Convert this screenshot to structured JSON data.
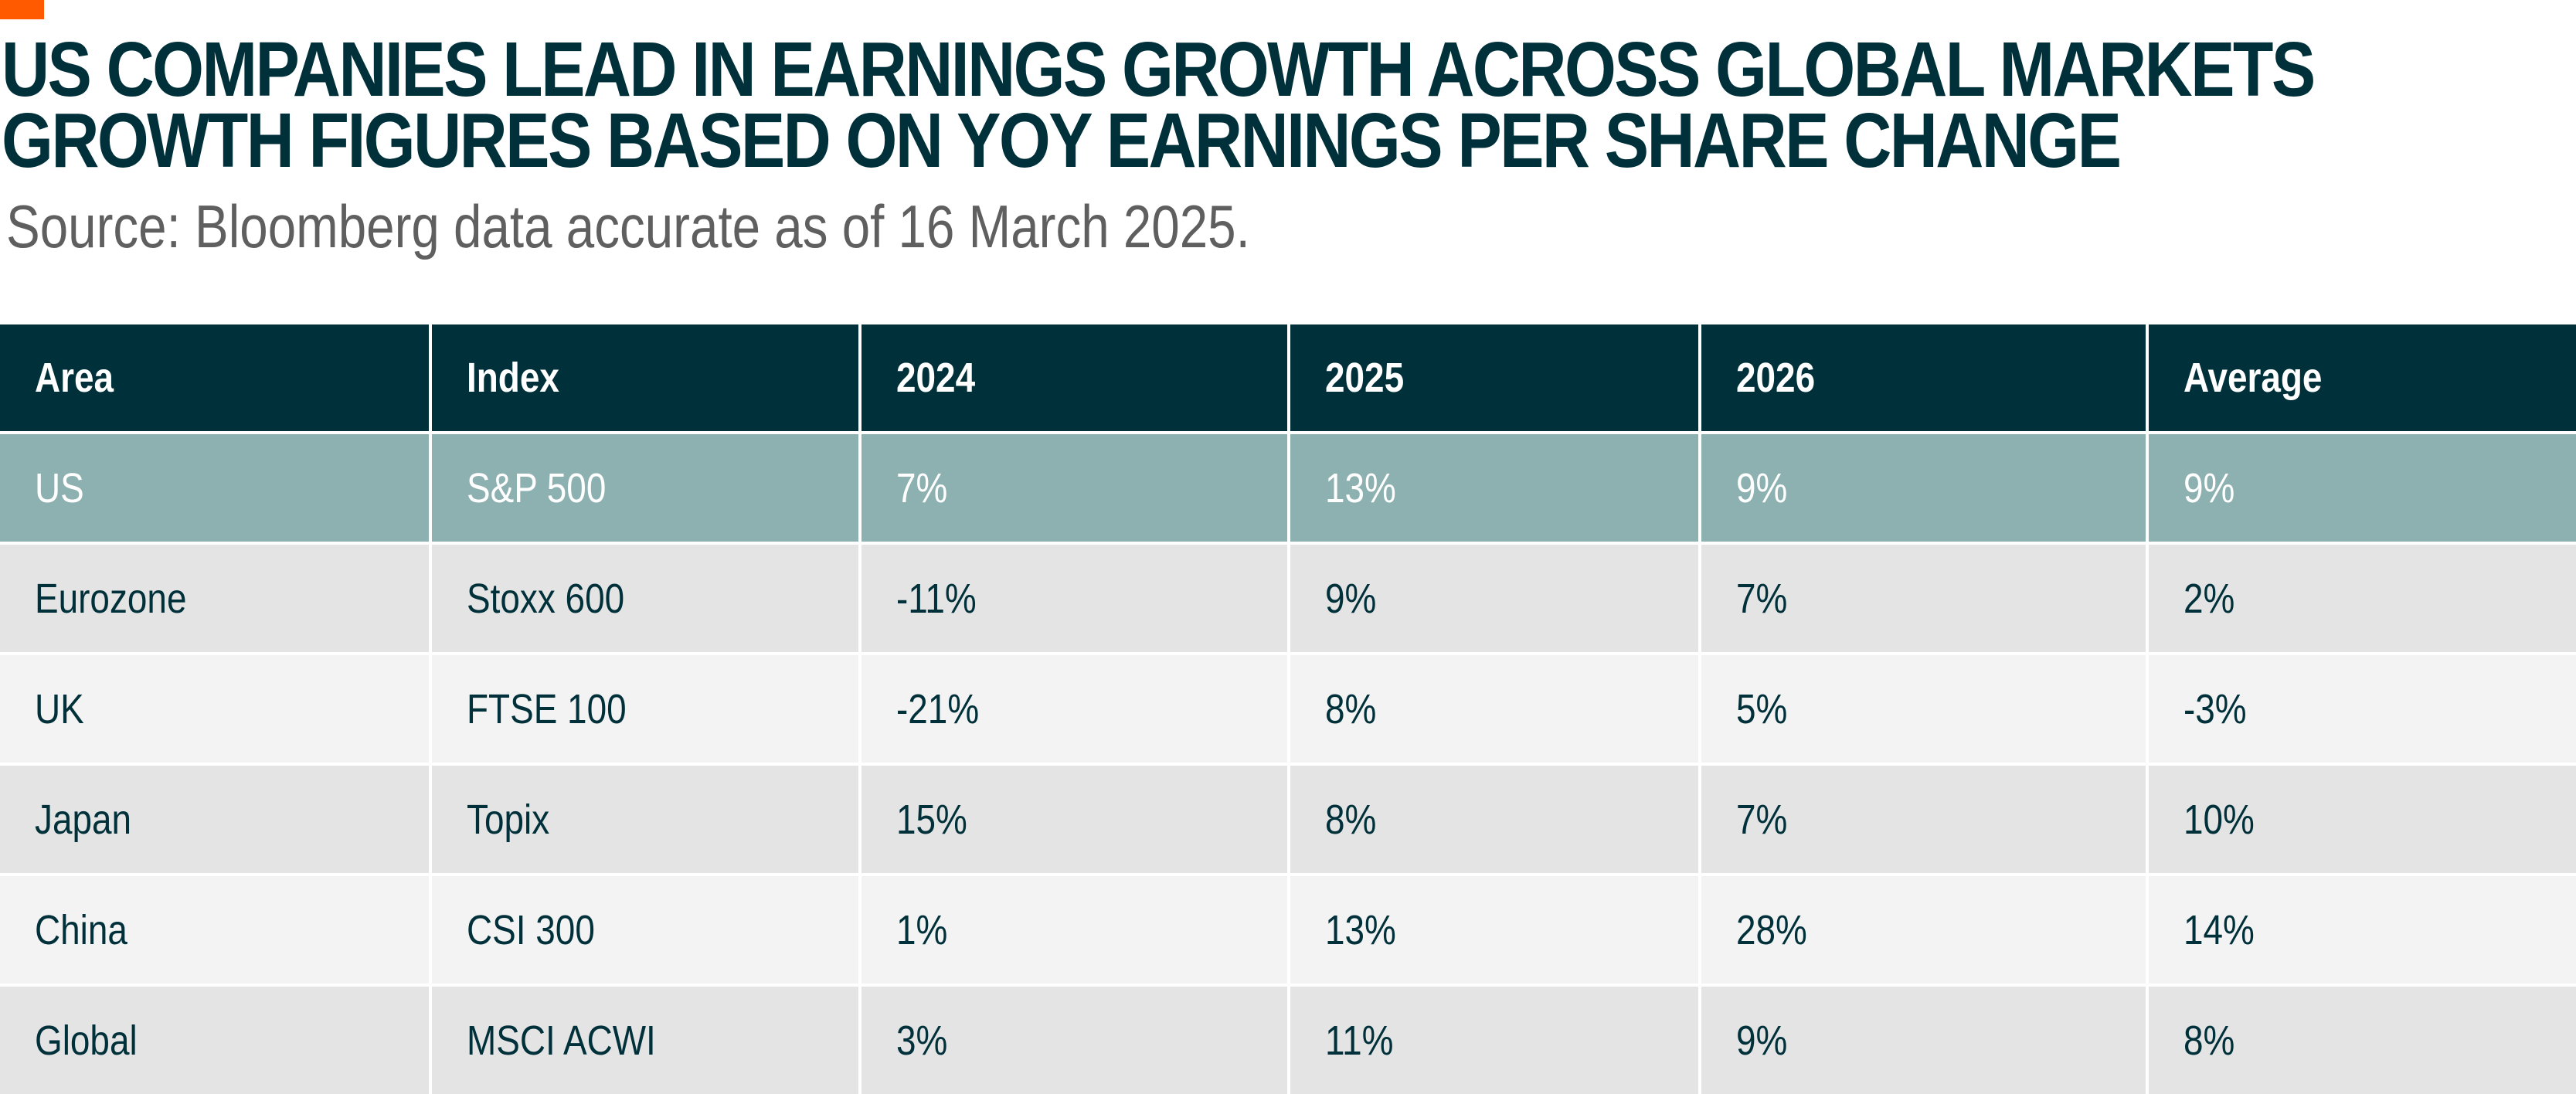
{
  "header": {
    "title_line1": "US COMPANIES LEAD IN EARNINGS GROWTH ACROSS GLOBAL MARKETS",
    "title_line2": "GROWTH FIGURES BASED ON YOY EARNINGS PER SHARE CHANGE",
    "source": "Source: Bloomberg data accurate as of 16 March 2025.",
    "accent_color": "#ff5a00"
  },
  "colors": {
    "header_bg": "#00303a",
    "highlight_row_bg": "#8db0b0",
    "row_bg_a": "#e4e4e4",
    "row_bg_b": "#f3f3f3",
    "text": "#00303a"
  },
  "chart_data": {
    "type": "table",
    "title": "US COMPANIES LEAD IN EARNINGS GROWTH ACROSS GLOBAL MARKETS",
    "subtitle": "GROWTH FIGURES BASED ON YOY EARNINGS PER SHARE CHANGE",
    "source": "Source: Bloomberg data accurate as of 16 March 2025.",
    "columns": [
      "Area",
      "Index",
      "2024",
      "2025",
      "2026",
      "Average"
    ],
    "rows": [
      [
        "US",
        "S&P 500",
        "7%",
        "13%",
        "9%",
        "9%"
      ],
      [
        "Eurozone",
        "Stoxx 600",
        "-11%",
        "9%",
        "7%",
        "2%"
      ],
      [
        "UK",
        "FTSE 100",
        "-21%",
        "8%",
        "5%",
        "-3%"
      ],
      [
        "Japan",
        "Topix",
        "15%",
        "8%",
        "7%",
        "10%"
      ],
      [
        "China",
        "CSI 300",
        "1%",
        "13%",
        "28%",
        "14%"
      ],
      [
        "Global",
        "MSCI ACWI",
        "3%",
        "11%",
        "9%",
        "8%"
      ]
    ],
    "highlighted_row": "US",
    "series": [
      {
        "name": "2024",
        "values": [
          7,
          -11,
          -21,
          15,
          1,
          3
        ]
      },
      {
        "name": "2025",
        "values": [
          13,
          9,
          8,
          8,
          13,
          11
        ]
      },
      {
        "name": "2026",
        "values": [
          9,
          7,
          5,
          7,
          28,
          9
        ]
      },
      {
        "name": "Average",
        "values": [
          9,
          2,
          -3,
          10,
          14,
          8
        ]
      }
    ],
    "categories": [
      "US",
      "Eurozone",
      "UK",
      "Japan",
      "China",
      "Global"
    ],
    "units": "%"
  }
}
